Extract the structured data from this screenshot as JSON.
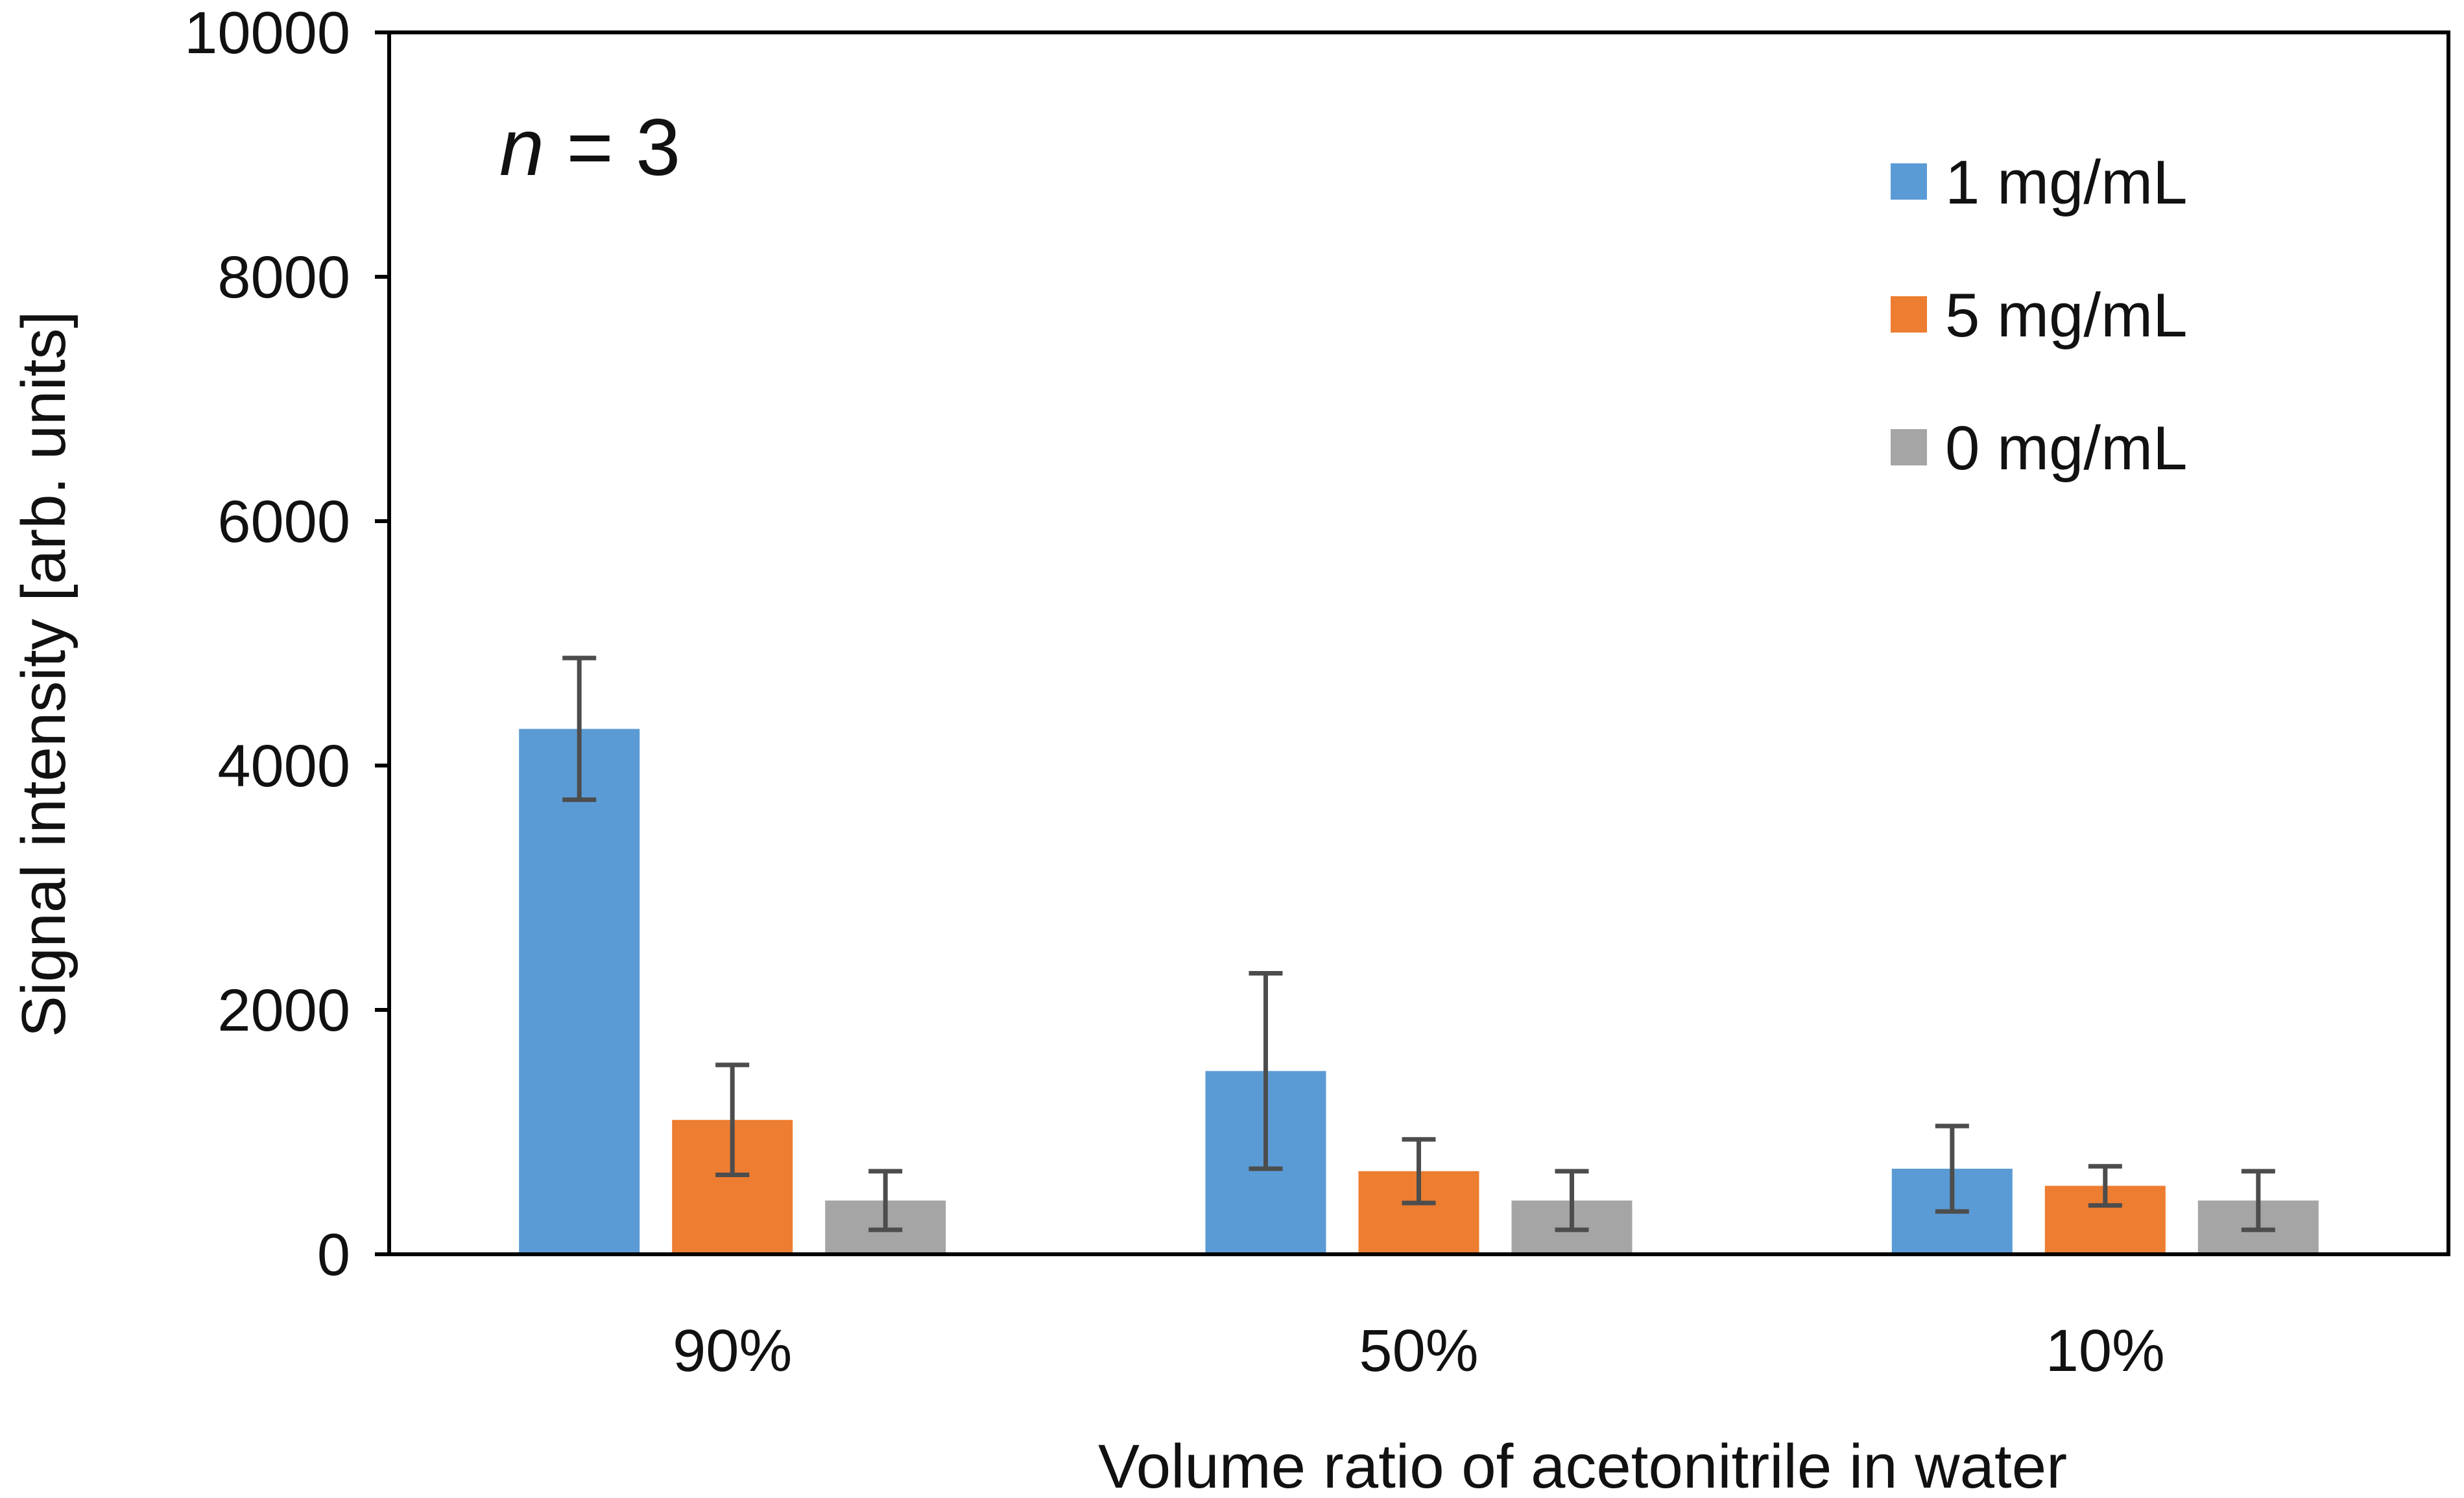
{
  "chart_data": {
    "type": "bar",
    "title": "",
    "xlabel": "Volume ratio of acetonitrile in water",
    "ylabel": "Signal intensity [arb. units]",
    "ylim": [
      0,
      10000
    ],
    "yticks": [
      0,
      2000,
      4000,
      6000,
      8000,
      10000
    ],
    "ytick_labels": [
      "0",
      "2000",
      "4000",
      "6000",
      "8000",
      "10000"
    ],
    "categories": [
      "90%",
      "50%",
      "10%"
    ],
    "series": [
      {
        "name": "1 mg/mL",
        "color": "#5B9BD5",
        "values": [
          4300,
          1500,
          700
        ],
        "errors": [
          580,
          800,
          350
        ]
      },
      {
        "name": "5 mg/mL",
        "color": "#ED7D31",
        "values": [
          1100,
          680,
          560
        ],
        "errors": [
          450,
          260,
          160
        ]
      },
      {
        "name": "0 mg/mL",
        "color": "#A5A5A5",
        "values": [
          440,
          440,
          440
        ],
        "errors": [
          240,
          240,
          240
        ]
      }
    ],
    "annotation": {
      "italic": "n",
      "rest": " = 3"
    },
    "legend_position": "top-right",
    "error_bar_color": "#4D4D4D",
    "axis_color": "#000000"
  }
}
